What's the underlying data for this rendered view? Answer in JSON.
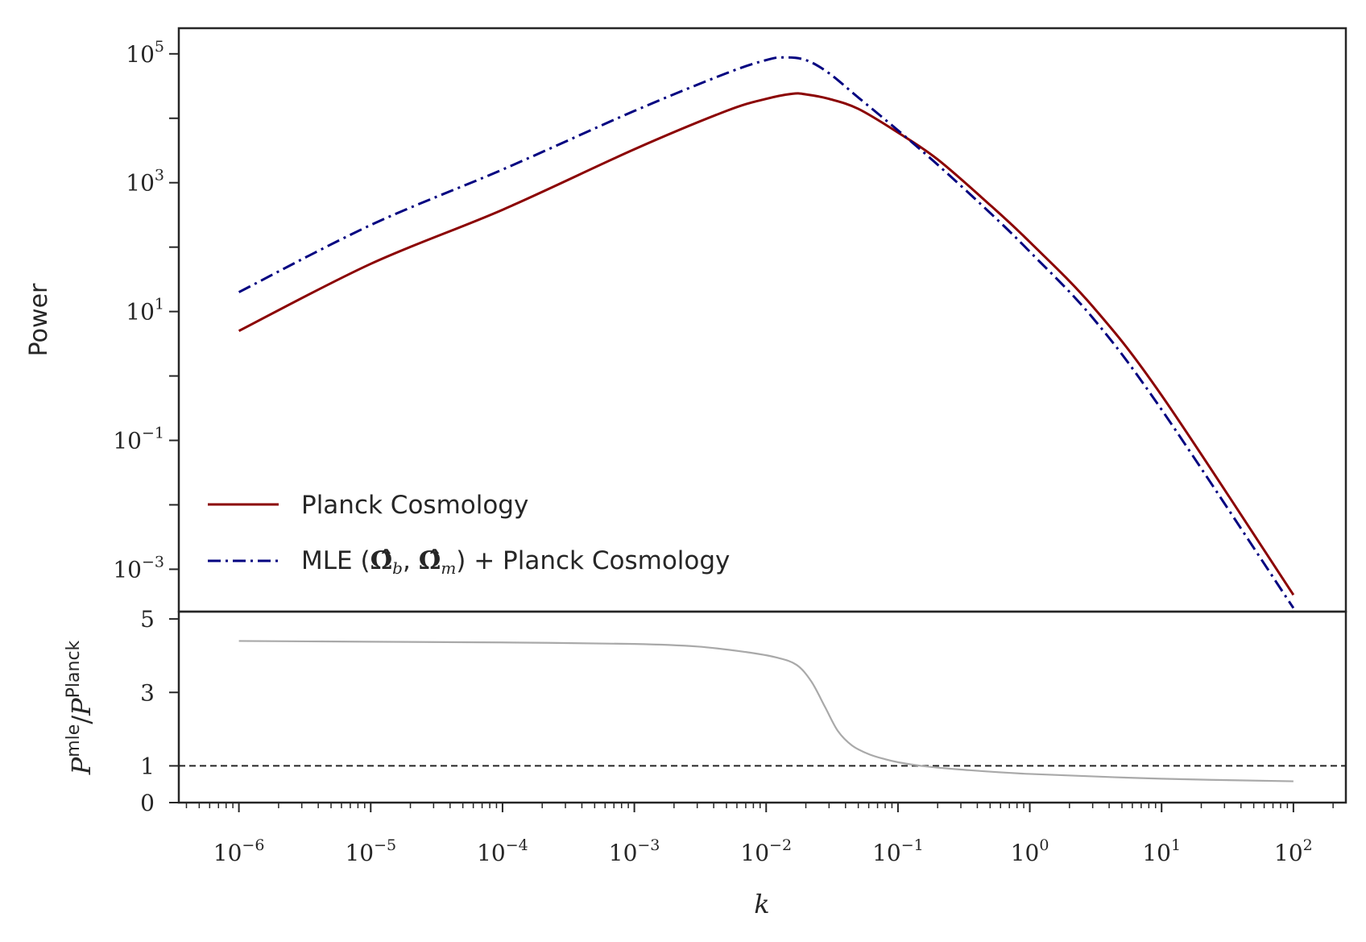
{
  "chart_data": [
    {
      "type": "line",
      "panel": "main",
      "xscale": "log",
      "yscale": "log",
      "xlim": [
        3.5e-07,
        250
      ],
      "ylim": [
        0.00022,
        250000
      ],
      "ylabel": "Power",
      "ytick_values": [
        0.001,
        0.1,
        10,
        1000,
        100000
      ],
      "ytick_labels": [
        {
          "base": "10",
          "exp": "−3"
        },
        {
          "base": "10",
          "exp": "−1"
        },
        {
          "base": "10",
          "exp": "1"
        },
        {
          "base": "10",
          "exp": "3"
        },
        {
          "base": "10",
          "exp": "5"
        }
      ],
      "legend_position": "lower-left",
      "series": [
        {
          "name": "Planck Cosmology",
          "color": "#8b0000",
          "dash": "solid",
          "x": [
            1e-06,
            1e-05,
            0.0001,
            0.001,
            0.005,
            0.01,
            0.0158,
            0.02,
            0.03,
            0.05,
            0.1,
            0.2,
            0.5,
            1,
            3,
            10,
            100
          ],
          "y": [
            5.0,
            55,
            380,
            3300,
            13000,
            20000,
            24000,
            23500,
            20000,
            14000,
            6000,
            2300,
            450,
            120,
            12,
            0.5,
            0.0004
          ]
        },
        {
          "name": "MLE (Ω̂b, Ω̂m) + Planck Cosmology",
          "label_parts": {
            "prefix": "MLE (",
            "omega": "Ω̂",
            "sub_b": "b",
            "sep": ", ",
            "sub_m": "m",
            "suffix": ") + Planck Cosmology"
          },
          "color": "#000080",
          "dash": "dashdot",
          "x": [
            1e-06,
            1e-05,
            0.0001,
            0.001,
            0.005,
            0.01,
            0.0135,
            0.02,
            0.03,
            0.05,
            0.1,
            0.2,
            0.5,
            1,
            3,
            10,
            100
          ],
          "y": [
            20,
            220,
            1600,
            13000,
            50000,
            80000,
            88000,
            80000,
            50000,
            21000,
            6500,
            1900,
            340,
            85,
            8,
            0.3,
            0.00025
          ]
        }
      ]
    },
    {
      "type": "line",
      "panel": "ratio",
      "xscale": "log",
      "xlim": [
        3.5e-07,
        250
      ],
      "ylim": [
        0,
        5.2
      ],
      "xlabel": "k",
      "ylabel": {
        "base": "P",
        "sup1": "mle",
        "slash": "/",
        "base2": "P",
        "sup2": "Planck"
      },
      "ytick_values": [
        0,
        1,
        3,
        5
      ],
      "ytick_labels": [
        "0",
        "1",
        "3",
        "5"
      ],
      "xtick_values": [
        1e-06,
        1e-05,
        0.0001,
        0.001,
        0.01,
        0.1,
        1,
        10,
        100
      ],
      "xtick_labels": [
        {
          "base": "10",
          "exp": "−6"
        },
        {
          "base": "10",
          "exp": "−5"
        },
        {
          "base": "10",
          "exp": "−4"
        },
        {
          "base": "10",
          "exp": "−3"
        },
        {
          "base": "10",
          "exp": "−2"
        },
        {
          "base": "10",
          "exp": "−1"
        },
        {
          "base": "10",
          "exp": "0"
        },
        {
          "base": "10",
          "exp": "1"
        },
        {
          "base": "10",
          "exp": "2"
        }
      ],
      "reference_line": {
        "y": 1,
        "style": "dashed",
        "color": "#262626"
      },
      "series": [
        {
          "color": "#a9a9a9",
          "x": [
            1e-06,
            1e-05,
            0.0001,
            0.001,
            0.003,
            0.007,
            0.012,
            0.017,
            0.022,
            0.028,
            0.035,
            0.045,
            0.06,
            0.08,
            0.1,
            0.15,
            0.3,
            1,
            10,
            100
          ],
          "y": [
            4.4,
            4.38,
            4.36,
            4.32,
            4.25,
            4.1,
            3.95,
            3.75,
            3.3,
            2.6,
            1.95,
            1.55,
            1.32,
            1.18,
            1.1,
            1.0,
            0.9,
            0.78,
            0.65,
            0.58
          ]
        }
      ]
    }
  ]
}
